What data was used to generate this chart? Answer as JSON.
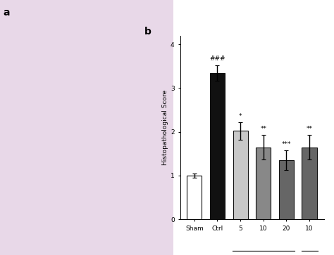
{
  "ylabel": "Histopathological Score",
  "categories": [
    "Sham",
    "Ctrl",
    "5",
    "10",
    "20",
    "10"
  ],
  "values": [
    1.0,
    3.35,
    2.02,
    1.65,
    1.35,
    1.65
  ],
  "errors": [
    0.05,
    0.18,
    0.2,
    0.28,
    0.22,
    0.28
  ],
  "bar_colors": [
    "#ffffff",
    "#111111",
    "#c8c8c8",
    "#888888",
    "#666666",
    "#666666"
  ],
  "bar_edgecolors": [
    "#111111",
    "#111111",
    "#111111",
    "#111111",
    "#111111",
    "#111111"
  ],
  "ylim": [
    0,
    4.2
  ],
  "yticks": [
    0,
    1,
    2,
    3,
    4
  ],
  "significance_above": [
    "",
    "###",
    "*",
    "**",
    "***",
    "**"
  ],
  "background_color": "#ffffff",
  "panel_label": "b",
  "left_panel_color": "#f0e8f0"
}
